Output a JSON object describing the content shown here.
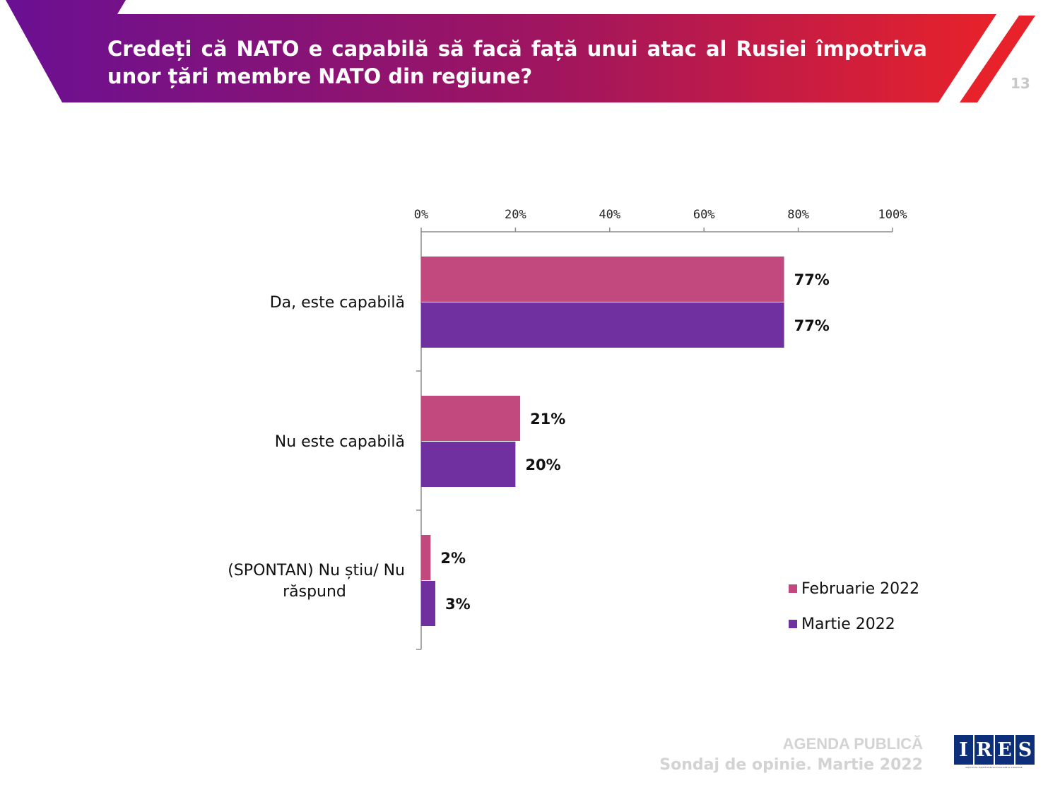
{
  "header": {
    "title": "Credeți că NATO e capabilă să facă față unui atac al Rusiei împotriva unor țări membre NATO din regiune?",
    "page_number": "13",
    "gradient_start": "#6a1093",
    "gradient_end": "#e8222a"
  },
  "chart_data": {
    "type": "bar",
    "orientation": "horizontal",
    "title": "",
    "categories": [
      "Da, este capabilă",
      "Nu este capabilă",
      "(SPONTAN) Nu știu/ Nu răspund"
    ],
    "series": [
      {
        "name": "Februarie 2022",
        "values": [
          77,
          21,
          2
        ],
        "labels": [
          "77%",
          "21%",
          "2%"
        ],
        "color": "#c1497e"
      },
      {
        "name": "Martie 2022",
        "values": [
          77,
          20,
          3
        ],
        "labels": [
          "77%",
          "20%",
          "3%"
        ],
        "color": "#7030a0"
      }
    ],
    "xlim": [
      0,
      100
    ],
    "ticks": [
      0,
      20,
      40,
      60,
      80,
      100
    ],
    "tick_labels": [
      "0%",
      "20%",
      "40%",
      "60%",
      "80%",
      "100%"
    ],
    "axis_position": "top",
    "grid": false,
    "legend_position": "bottom-right"
  },
  "footer": {
    "line1": "AGENDA PUBLICĂ",
    "line2": "Sondaj de opinie. Martie 2022"
  },
  "logo": {
    "letters": [
      "I",
      "R",
      "E",
      "S"
    ],
    "subtitle": "INSTITUTUL ROMÂN PENTRU EVALUARE ȘI STRATEGIE"
  }
}
